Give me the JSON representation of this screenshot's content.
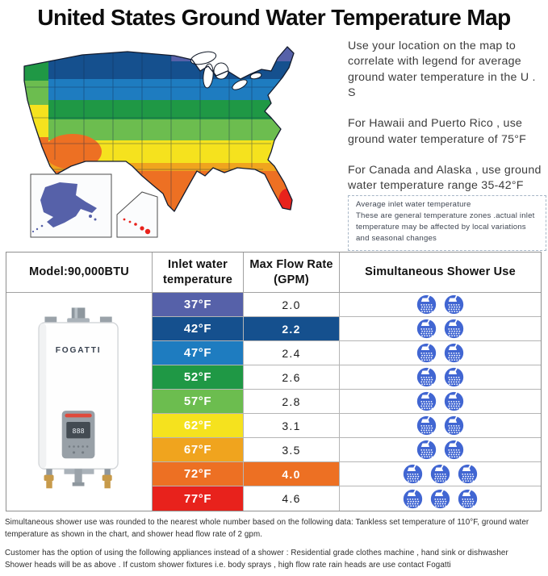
{
  "title": "United States Ground Water Temperature Map",
  "info": {
    "paragraphs": [
      "Use your location on the map to correlate with legend for average ground water temperature in the U . S",
      "For Hawaii and Puerto Rico , use ground water temperature of 75°F",
      "For Canada and Alaska , use ground water temperature range 35-42°F"
    ],
    "note_title": "Average inlet water temperature",
    "note_body": "These are general temperature zones .actual inlet temperature may be affected by local variations and seasonal changes"
  },
  "map": {
    "zone_colors": [
      "#5661a9",
      "#15508e",
      "#1e7cc0",
      "#1f9845",
      "#6cbd4f",
      "#f5e21e",
      "#f0a41e",
      "#ed7023",
      "#e8221c"
    ],
    "alaska_color": "#5661a9",
    "hawaii_color": "#e8221c"
  },
  "table": {
    "model_header": "Model:90,000BTU",
    "col_inlet": "Inlet water temperature",
    "col_flow": "Max Flow Rate (GPM)",
    "col_shower": "Simultaneous Shower Use",
    "brand": "FOGATTI",
    "rows": [
      {
        "temp": "37°F",
        "flow": "2.0",
        "showers": 2,
        "color": "#5661a9",
        "highlight": false
      },
      {
        "temp": "42°F",
        "flow": "2.2",
        "showers": 2,
        "color": "#15508e",
        "highlight": true
      },
      {
        "temp": "47°F",
        "flow": "2.4",
        "showers": 2,
        "color": "#1e7cc0",
        "highlight": false
      },
      {
        "temp": "52°F",
        "flow": "2.6",
        "showers": 2,
        "color": "#1f9845",
        "highlight": false
      },
      {
        "temp": "57°F",
        "flow": "2.8",
        "showers": 2,
        "color": "#6cbd4f",
        "highlight": false
      },
      {
        "temp": "62°F",
        "flow": "3.1",
        "showers": 2,
        "color": "#f5e21e",
        "highlight": false
      },
      {
        "temp": "67°F",
        "flow": "3.5",
        "showers": 2,
        "color": "#f0a41e",
        "highlight": false
      },
      {
        "temp": "72°F",
        "flow": "4.0",
        "showers": 3,
        "color": "#ed7023",
        "highlight": true
      },
      {
        "temp": "77°F",
        "flow": "4.6",
        "showers": 3,
        "color": "#e8221c",
        "highlight": false
      }
    ]
  },
  "colors": {
    "shower_icon": "#4166d2"
  },
  "footer": {
    "para1": "Simultaneous shower use was rounded to the nearest whole number based on the following data: Tankless set temperature of 110°F, ground water temperature as shown in the chart, and shower head flow rate of 2 gpm.",
    "para2": "Customer has the option of using the following appliances instead of a shower : Residential grade clothes machine , hand sink or dishwasher",
    "para3": "Shower heads will be as above . If custom shower fixtures i.e. body sprays , high flow rate rain heads are use contact Fogatti"
  }
}
